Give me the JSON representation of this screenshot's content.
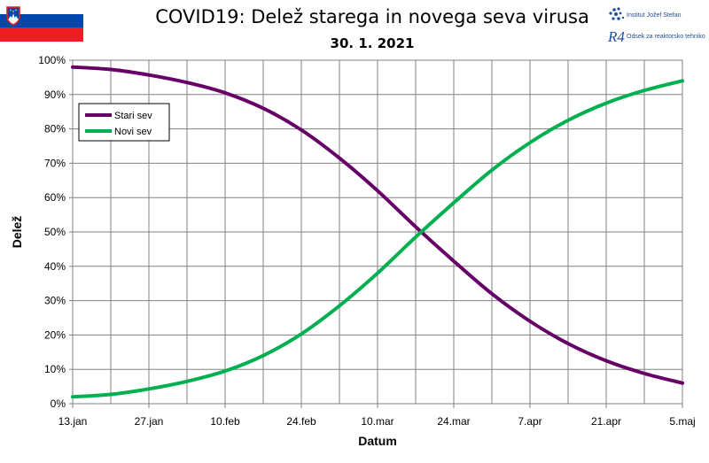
{
  "header": {
    "title": "COVID19: Delež starega in novega seva virusa",
    "date": "30. 1. 2021",
    "institute_ijs": "Institut Jožef Stefan",
    "institute_dept": "Odsek za reaktorsko tehniko",
    "flag_icon": "slovenia-flag-icon",
    "logo_icon": "ijs-logo-icon",
    "r4_logo": "R4"
  },
  "chart_data": {
    "type": "line",
    "title": "COVID19: Delež starega in novega seva virusa",
    "subtitle": "30. 1. 2021",
    "xlabel": "Datum",
    "ylabel": "Delež",
    "x_ticks": [
      "13.jan",
      "27.jan",
      "10.feb",
      "24.feb",
      "10.mar",
      "24.mar",
      "7.apr",
      "21.apr",
      "5.maj"
    ],
    "x_range": [
      "2021-01-13",
      "2021-05-05"
    ],
    "ylim": [
      0,
      100
    ],
    "y_ticks": [
      "0%",
      "10%",
      "20%",
      "30%",
      "40%",
      "50%",
      "60%",
      "70%",
      "80%",
      "90%",
      "100%"
    ],
    "grid": true,
    "legend_position": "top-left",
    "x": [
      "2021-01-13",
      "2021-01-20",
      "2021-01-27",
      "2021-02-03",
      "2021-02-10",
      "2021-02-17",
      "2021-02-24",
      "2021-03-03",
      "2021-03-10",
      "2021-03-17",
      "2021-03-24",
      "2021-03-31",
      "2021-04-07",
      "2021-04-14",
      "2021-04-21",
      "2021-04-28",
      "2021-05-05"
    ],
    "series": [
      {
        "name": "Stari sev",
        "color": "#660066",
        "values": [
          98,
          97.3,
          95.7,
          93.5,
          90.5,
          86.0,
          79.7,
          71.5,
          62.0,
          51.5,
          41.5,
          32.0,
          24.0,
          17.5,
          12.5,
          8.8,
          6.0
        ]
      },
      {
        "name": "Novi sev",
        "color": "#00b050",
        "values": [
          2,
          2.7,
          4.3,
          6.5,
          9.5,
          14.0,
          20.3,
          28.5,
          38.0,
          48.5,
          58.5,
          68.0,
          76.0,
          82.5,
          87.5,
          91.2,
          94.0
        ]
      }
    ]
  }
}
